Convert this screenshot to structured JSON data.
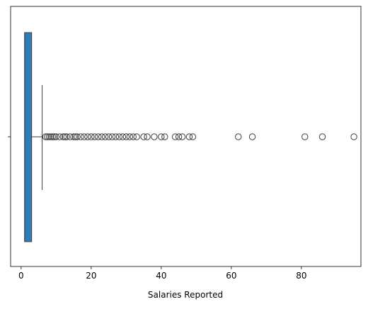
{
  "chart_data": {
    "type": "box",
    "orientation": "horizontal",
    "xlabel": "Salaries Reported",
    "ylabel": "",
    "xlim": [
      -3,
      97
    ],
    "x_ticks": [
      0,
      20,
      40,
      60,
      80
    ],
    "x_tick_labels": [
      "0",
      "20",
      "40",
      "60",
      "80"
    ],
    "y_ticks": [
      ""
    ],
    "grid": false,
    "box": {
      "min": 1,
      "q1": 1,
      "median": 1,
      "q3": 3,
      "whisker_low": 1,
      "whisker_high": 6,
      "fill_color": "#2e7db7",
      "line_color": "#3d3d3d"
    },
    "outliers": [
      7,
      7.5,
      8,
      8.5,
      9,
      9.5,
      10,
      11,
      12,
      12.5,
      13,
      14,
      15,
      15.5,
      16,
      17,
      18,
      19,
      20,
      21,
      22,
      23,
      24,
      25,
      26,
      27,
      28,
      29,
      30,
      31,
      32,
      33,
      35,
      36,
      38,
      40,
      41,
      44,
      45,
      46,
      48,
      49,
      62,
      66,
      81,
      86,
      95
    ]
  }
}
